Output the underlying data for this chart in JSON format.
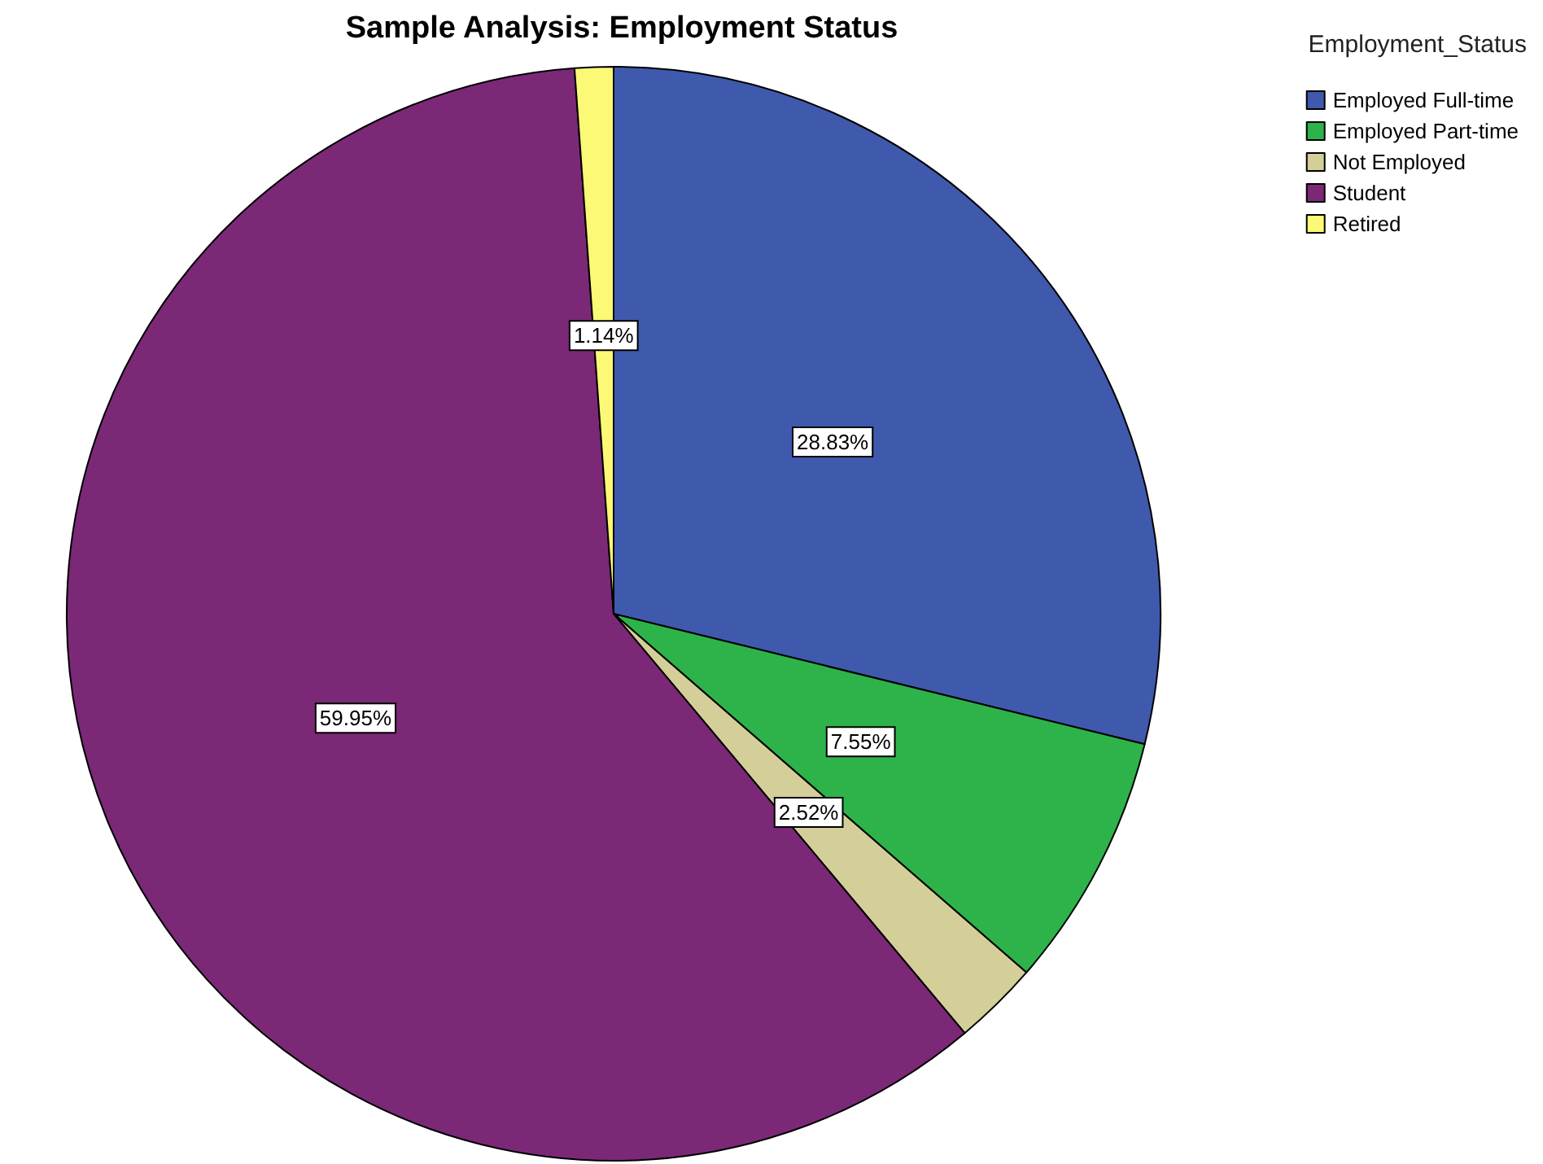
{
  "chart_data": {
    "type": "pie",
    "title": "Sample Analysis: Employment Status",
    "legend_title": "Employment_Status",
    "categories": [
      "Employed Full-time",
      "Employed Part-time",
      "Not Employed",
      "Student",
      "Retired"
    ],
    "values": [
      28.83,
      7.55,
      2.52,
      59.95,
      1.14
    ],
    "value_labels": [
      "28.83%",
      "7.55%",
      "2.52%",
      "59.95%",
      "1.14%"
    ],
    "colors": [
      "#3f59ad",
      "#2db34a",
      "#d4cf99",
      "#7b2877",
      "#fbf975"
    ],
    "legend": "top right"
  }
}
